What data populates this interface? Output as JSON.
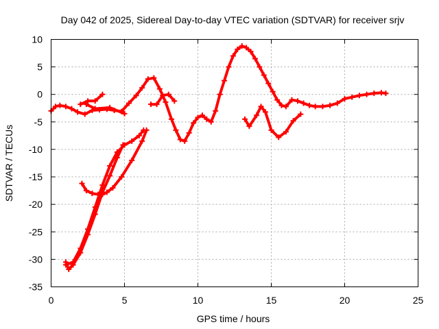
{
  "chart_data": {
    "type": "scatter",
    "title": "Day 042 of 2025, Sidereal Day-to-day VTEC variation (SDTVAR) for receiver srjv",
    "xlabel": "GPS time / hours",
    "ylabel": "SDTVAR / TECUs",
    "xlim": [
      0,
      25
    ],
    "ylim": [
      -35,
      10
    ],
    "xticks": [
      0,
      5,
      10,
      15,
      20,
      25
    ],
    "yticks": [
      -35,
      -30,
      -25,
      -20,
      -15,
      -10,
      -5,
      0,
      5,
      10
    ],
    "grid": true,
    "color": "#ff0000",
    "series": [
      {
        "name": "track-1",
        "x": [
          0.0,
          0.3,
          0.6,
          1.0,
          1.4,
          1.8,
          2.3,
          2.8,
          3.3,
          3.8,
          4.3,
          4.8,
          5.3,
          5.8,
          6.2,
          6.6,
          7.0,
          7.4,
          7.8,
          8.2,
          8.5,
          8.8,
          9.1,
          9.4,
          9.7,
          10.0,
          10.3,
          10.6,
          10.9,
          11.2,
          11.5,
          11.8,
          12.1,
          12.4,
          12.7,
          13.0,
          13.3,
          13.6,
          13.9,
          14.2,
          14.5,
          14.8,
          15.1,
          15.4,
          15.7,
          16.0,
          16.4,
          16.8,
          17.2,
          17.6,
          18.0,
          18.5,
          19.0,
          19.5,
          20.0,
          20.5,
          21.0,
          21.5,
          22.0,
          22.5,
          22.8
        ],
        "y": [
          -3.0,
          -2.2,
          -2.0,
          -2.2,
          -2.6,
          -3.2,
          -3.6,
          -2.9,
          -2.8,
          -2.7,
          -2.9,
          -3.1,
          -1.6,
          -0.2,
          1.2,
          2.8,
          3.0,
          1.0,
          -1.4,
          -4.5,
          -6.5,
          -8.2,
          -8.5,
          -7.0,
          -5.2,
          -4.2,
          -3.8,
          -4.5,
          -5.0,
          -3.0,
          0.0,
          2.5,
          5.0,
          7.0,
          8.2,
          8.8,
          8.5,
          7.8,
          6.5,
          5.0,
          3.5,
          2.0,
          0.5,
          -1.0,
          -2.0,
          -2.2,
          -1.0,
          -1.2,
          -1.6,
          -2.0,
          -2.2,
          -2.2,
          -2.0,
          -1.6,
          -0.8,
          -0.5,
          -0.2,
          0.0,
          0.2,
          0.3,
          0.2
        ]
      },
      {
        "name": "track-2",
        "x": [
          1.0,
          1.5,
          2.0,
          2.5,
          3.0,
          3.5,
          4.0,
          4.5,
          5.0,
          5.5,
          6.0,
          6.3
        ],
        "y": [
          -31.0,
          -30.5,
          -28.0,
          -24.5,
          -20.5,
          -16.5,
          -13.0,
          -10.5,
          -9.2,
          -8.5,
          -7.5,
          -6.5
        ]
      },
      {
        "name": "track-3",
        "x": [
          1.0,
          1.2,
          1.5,
          2.0,
          2.5,
          3.0,
          3.5,
          4.0,
          4.5,
          4.9
        ],
        "y": [
          -30.5,
          -31.8,
          -31.0,
          -28.8,
          -25.5,
          -21.8,
          -17.8,
          -14.8,
          -11.5,
          -9.2
        ]
      },
      {
        "name": "track-4",
        "x": [
          2.1,
          2.4,
          2.8,
          3.2,
          3.5,
          3.8,
          4.2,
          4.8,
          5.5,
          6.2,
          6.5
        ],
        "y": [
          -16.2,
          -17.5,
          -18.0,
          -18.2,
          -18.2,
          -17.8,
          -17.0,
          -15.0,
          -12.0,
          -8.5,
          -6.5
        ]
      },
      {
        "name": "track-5",
        "x": [
          2.0,
          2.5,
          3.0,
          3.5
        ],
        "y": [
          -1.8,
          -1.2,
          -1.2,
          0.0
        ]
      },
      {
        "name": "track-6",
        "x": [
          2.4,
          3.0,
          4.0,
          5.0
        ],
        "y": [
          -1.8,
          -2.6,
          -2.4,
          -3.5
        ]
      },
      {
        "name": "track-7",
        "x": [
          13.2,
          13.5,
          14.0,
          14.3,
          14.6,
          15.0,
          15.5,
          16.0,
          16.5,
          17.0
        ],
        "y": [
          -4.5,
          -5.8,
          -3.8,
          -2.2,
          -3.2,
          -6.5,
          -7.8,
          -6.8,
          -4.8,
          -3.6
        ]
      },
      {
        "name": "track-8",
        "x": [
          6.8,
          7.2,
          7.6,
          8.0,
          8.4
        ],
        "y": [
          -1.8,
          -1.8,
          -0.2,
          0.0,
          -1.2
        ]
      }
    ]
  }
}
